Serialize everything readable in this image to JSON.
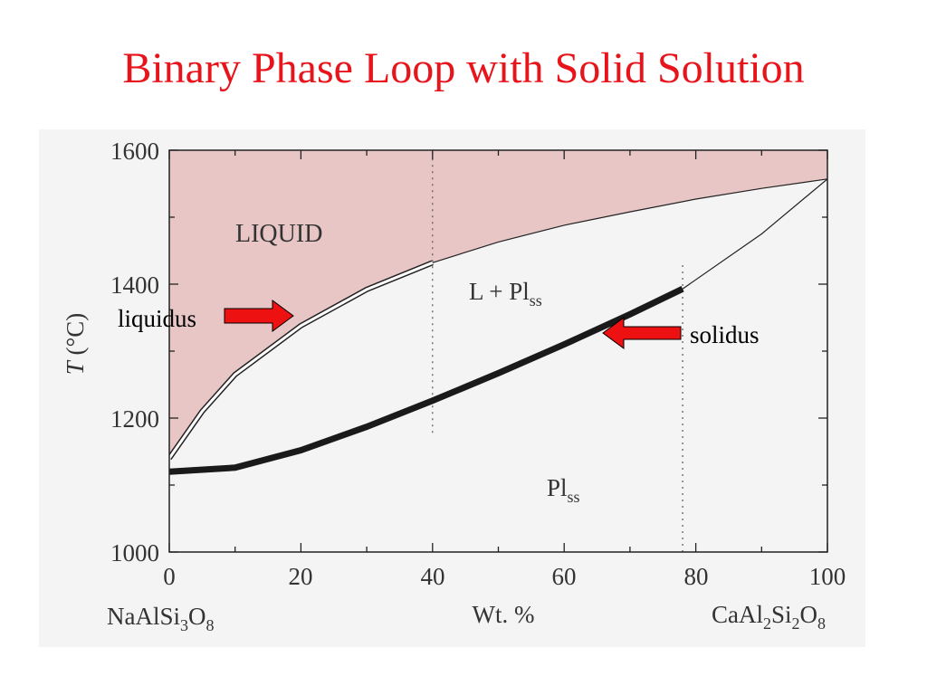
{
  "slide": {
    "title": "Binary Phase Loop with Solid Solution",
    "title_color": "#e8141b"
  },
  "diagram": {
    "x_axis": {
      "range": [
        0,
        100
      ],
      "ticks": [
        "0",
        "20",
        "40",
        "60",
        "80",
        "100"
      ],
      "tick_values": [
        0,
        20,
        40,
        60,
        80,
        100
      ],
      "label": "Wt. %",
      "left_endmember": {
        "base": "NaAlSi",
        "sub1": "3",
        "mid": "O",
        "sub2": "8"
      },
      "right_endmember": {
        "pre": "CaAl",
        "sub1": "2",
        "mid": "Si",
        "sub2": "2",
        "post": "O",
        "sub3": "8"
      }
    },
    "y_axis": {
      "range": [
        1000,
        1600
      ],
      "ticks": [
        "1000",
        "1200",
        "1400",
        "1600"
      ],
      "tick_values": [
        1000,
        1200,
        1400,
        1600
      ],
      "label_italic": "T",
      "label_rest": " (°C)"
    },
    "regions": {
      "liquid": "LIQUID",
      "two_phase_main": "L + Pl",
      "two_phase_sub": "ss",
      "solid_main": "Pl",
      "solid_sub": "ss"
    },
    "callouts": {
      "liquidus": "liquidus",
      "solidus": "solidus"
    },
    "curves": {
      "liquidus": [
        [
          0,
          1140
        ],
        [
          5,
          1210
        ],
        [
          10,
          1265
        ],
        [
          20,
          1338
        ],
        [
          30,
          1392
        ],
        [
          40,
          1432
        ],
        [
          50,
          1463
        ],
        [
          60,
          1488
        ],
        [
          70,
          1508
        ],
        [
          80,
          1527
        ],
        [
          90,
          1543
        ],
        [
          100,
          1557
        ]
      ],
      "solidus": [
        [
          0,
          1120
        ],
        [
          10,
          1126
        ],
        [
          20,
          1152
        ],
        [
          30,
          1187
        ],
        [
          40,
          1226
        ],
        [
          50,
          1267
        ],
        [
          60,
          1310
        ],
        [
          70,
          1355
        ],
        [
          78,
          1393
        ],
        [
          90,
          1475
        ],
        [
          100,
          1557
        ]
      ]
    },
    "tie_lines": [
      {
        "x": 40,
        "y_from": 1178,
        "y_to": 1600
      },
      {
        "x": 78,
        "y_from": 1000,
        "y_to": 1432
      }
    ],
    "colors": {
      "liquid_fill": "#e8c6c6",
      "arrow": "#ee1111",
      "frame": "#f4f4f4"
    }
  }
}
